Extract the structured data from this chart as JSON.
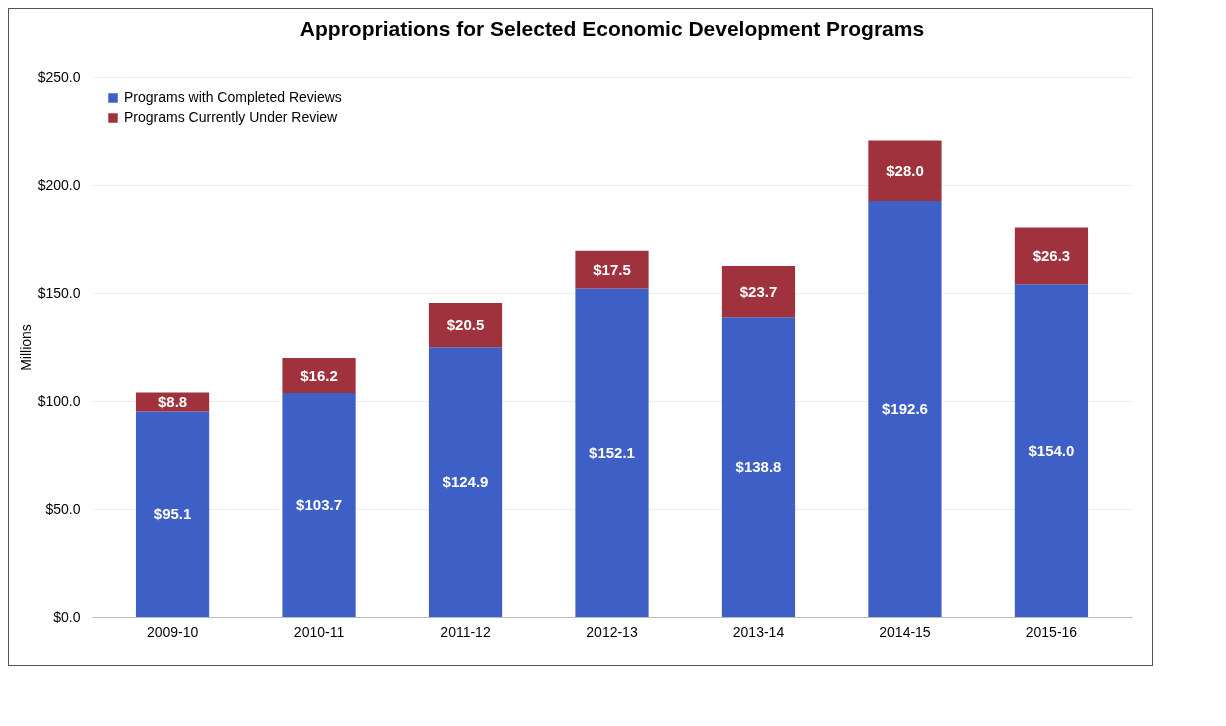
{
  "chart_data": {
    "type": "bar",
    "title": "Appropriations for Selected Economic Development Programs",
    "ylabel": "Millions",
    "categories": [
      "2009-10",
      "2010-11",
      "2011-12",
      "2012-13",
      "2013-14",
      "2014-15",
      "2015-16"
    ],
    "stacked": true,
    "series": [
      {
        "name": "Programs with Completed Reviews",
        "color": "#3d5fc6",
        "values": [
          95.1,
          103.7,
          124.9,
          152.1,
          138.8,
          192.6,
          154.0
        ],
        "value_labels": [
          "$95.1",
          "$103.7",
          "$124.9",
          "$152.1",
          "$138.8",
          "$192.6",
          "$154.0"
        ]
      },
      {
        "name": "Programs Currently Under Review",
        "color": "#a0323d",
        "values": [
          8.8,
          16.2,
          20.5,
          17.5,
          23.7,
          28.0,
          26.3
        ],
        "value_labels": [
          "$8.8",
          "$16.2",
          "$20.5",
          "$17.5",
          "$23.7",
          "$28.0",
          "$26.3"
        ]
      }
    ],
    "ylim": [
      0,
      250
    ],
    "yticks": [
      {
        "value": 0,
        "label": "$0.0"
      },
      {
        "value": 50,
        "label": "$50.0"
      },
      {
        "value": 100,
        "label": "$100.0"
      },
      {
        "value": 150,
        "label": "$150.0"
      },
      {
        "value": 200,
        "label": "$200.0"
      },
      {
        "value": 250,
        "label": "$250.0"
      }
    ],
    "grid": "y",
    "legend": "top left"
  }
}
